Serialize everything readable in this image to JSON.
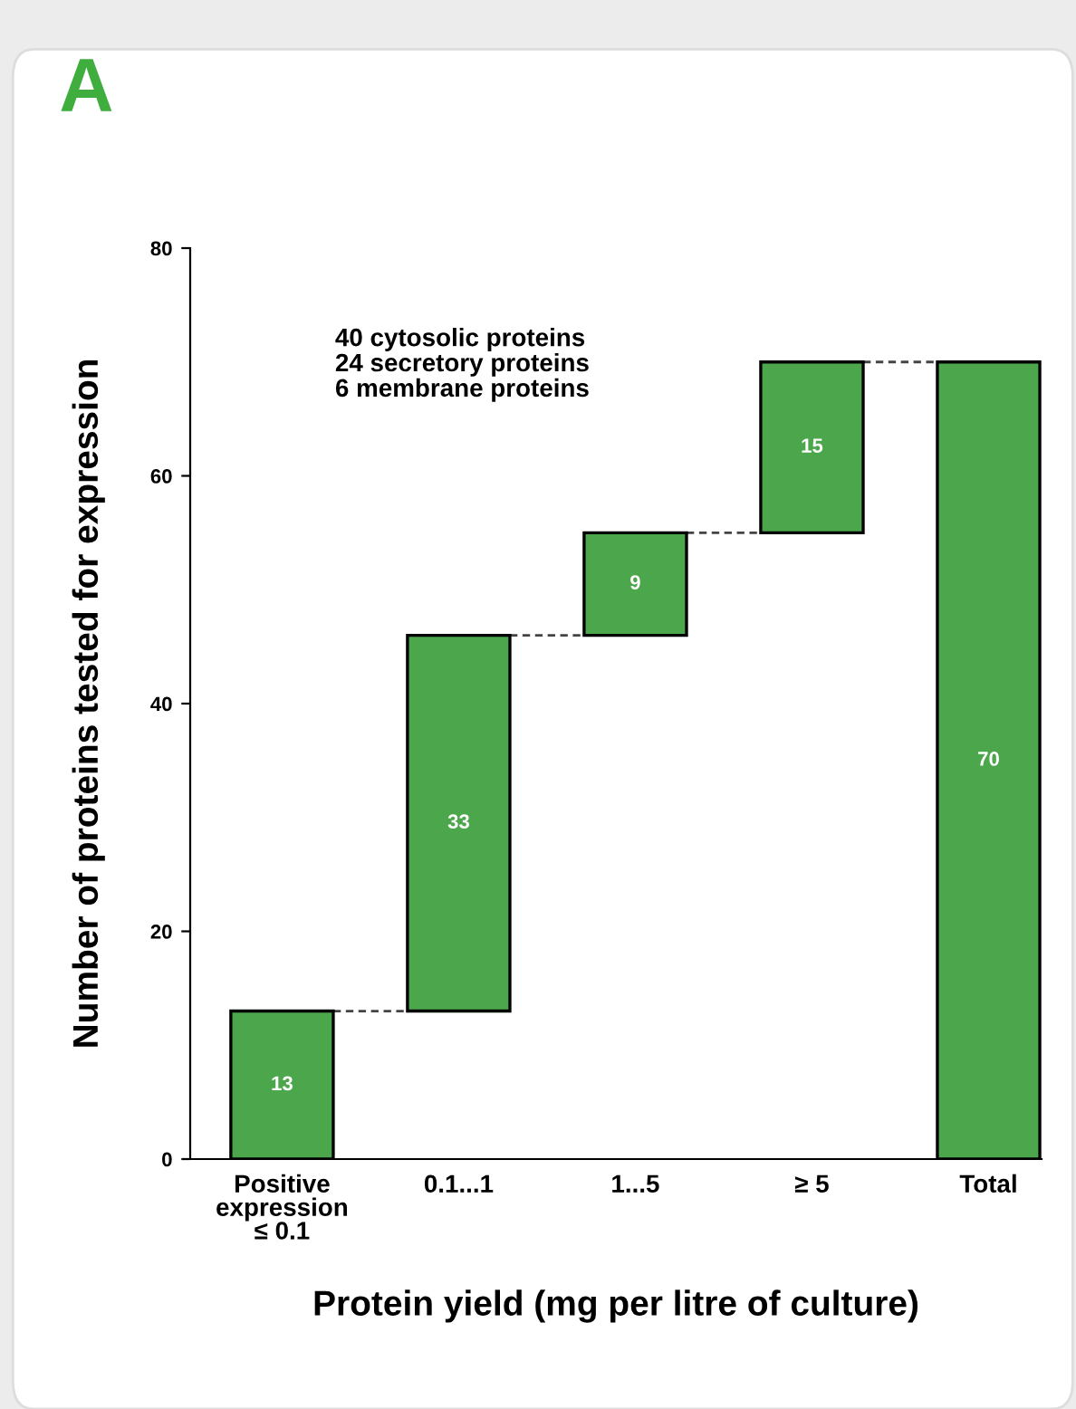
{
  "chart_data": {
    "type": "bar",
    "title": "A",
    "xlabel": "Protein yield (mg per litre of culture)",
    "ylabel": "Number of proteins tested for expression",
    "categories": [
      "Positive\nexpression\n≤ 0.1",
      "0.1...1",
      "1...5",
      "≥ 5",
      "Total"
    ],
    "values": [
      13,
      33,
      9,
      15,
      70
    ],
    "base": [
      0,
      13,
      46,
      55,
      0
    ],
    "color": "#4ca64c",
    "data_labels": true,
    "ylim": [
      0,
      80
    ],
    "yticks": [
      0,
      20,
      40,
      60,
      80
    ],
    "annotations": [
      "40 cytosolic proteins\n24 secretory proteins\n6 membrane proteins"
    ]
  }
}
